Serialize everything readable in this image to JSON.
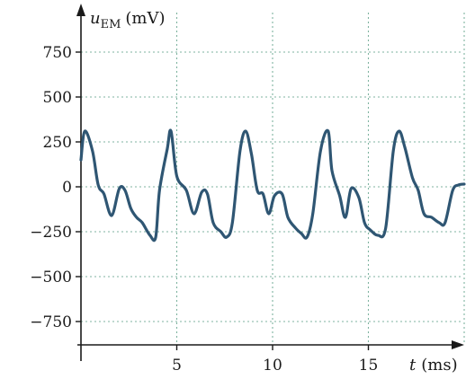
{
  "chart_data": {
    "type": "line",
    "title": "",
    "xlabel": {
      "symbol": "t",
      "unit": "(ms)"
    },
    "ylabel": {
      "symbol": "u",
      "subscript": "EM",
      "unit": "(mV)"
    },
    "xlim": [
      0,
      20
    ],
    "ylim": [
      -800,
      800
    ],
    "x_ticks": [
      5,
      10,
      15
    ],
    "x_tick_labels": [
      "5",
      "10",
      "15"
    ],
    "y_ticks": [
      750,
      500,
      250,
      0,
      -250,
      -500,
      -750
    ],
    "y_tick_labels": [
      "750",
      "500",
      "250",
      "0",
      "−250",
      "−500",
      "−750"
    ],
    "grid": true,
    "line_color": "#2f5673",
    "grid_color": "#7fb3a0",
    "axis_color": "#1a1a1a",
    "series": [
      {
        "x": [
          0,
          0.2,
          0.6,
          0.9,
          1.2,
          1.6,
          2.0,
          2.3,
          2.6,
          2.9,
          3.2,
          3.6,
          3.9,
          4.1,
          4.5,
          4.7,
          5.0,
          5.5,
          5.9,
          6.3,
          6.6,
          6.9,
          7.3,
          7.6,
          7.9,
          8.3,
          8.6,
          8.9,
          9.2,
          9.5,
          9.8,
          10.1,
          10.5,
          10.8,
          11.2,
          11.5,
          11.8,
          12.1,
          12.5,
          12.9,
          13.1,
          13.5,
          13.8,
          14.1,
          14.5,
          14.8,
          15.1,
          15.5,
          15.9,
          16.3,
          16.6,
          16.9,
          17.3,
          17.6,
          17.9,
          18.3,
          18.7,
          19.0,
          19.4,
          19.7,
          20.0
        ],
        "y": [
          150,
          310,
          200,
          10,
          -40,
          -160,
          -10,
          -20,
          -120,
          -170,
          -200,
          -270,
          -280,
          -20,
          210,
          310,
          60,
          -20,
          -150,
          -30,
          -40,
          -200,
          -250,
          -280,
          -200,
          200,
          310,
          180,
          -20,
          -40,
          -150,
          -50,
          -40,
          -170,
          -230,
          -260,
          -280,
          -150,
          200,
          310,
          90,
          -50,
          -170,
          -10,
          -60,
          -200,
          -240,
          -270,
          -230,
          200,
          310,
          220,
          50,
          -20,
          -150,
          -170,
          -200,
          -200,
          -20,
          10,
          15
        ]
      }
    ]
  }
}
